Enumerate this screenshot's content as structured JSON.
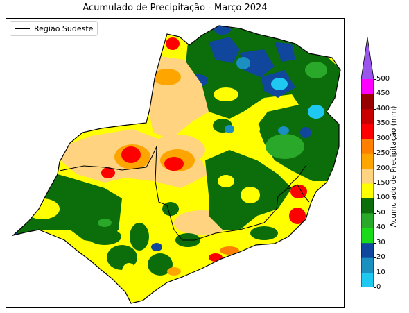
{
  "title": "Acumulado de Precipitação - Março 2024",
  "legend": {
    "label": "Região Sudeste"
  },
  "colorbar": {
    "label": "Acumulado de Precipitação (mm)",
    "ticks": [
      "0",
      "10",
      "20",
      "30",
      "40",
      "50",
      "100",
      "150",
      "200",
      "250",
      "300",
      "350",
      "400",
      "450",
      "500"
    ],
    "colors": [
      "#1fc8f0",
      "#1a8fc0",
      "#10469c",
      "#1adb1a",
      "#2aa82a",
      "#0b6e0b",
      "#ffff00",
      "#ffd37f",
      "#ffa500",
      "#ff7f00",
      "#ff0000",
      "#c80000",
      "#960000",
      "#ff00ff",
      "#9955ee"
    ],
    "extend": "max"
  },
  "chart_data": {
    "type": "heatmap",
    "title": "Acumulado de Precipitação - Março 2024",
    "colorbar_label": "Acumulado de Precipitação (mm)",
    "levels_mm": [
      0,
      10,
      20,
      30,
      40,
      50,
      100,
      150,
      200,
      250,
      300,
      350,
      400,
      450,
      500
    ],
    "legend": [
      "Região Sudeste"
    ]
  }
}
